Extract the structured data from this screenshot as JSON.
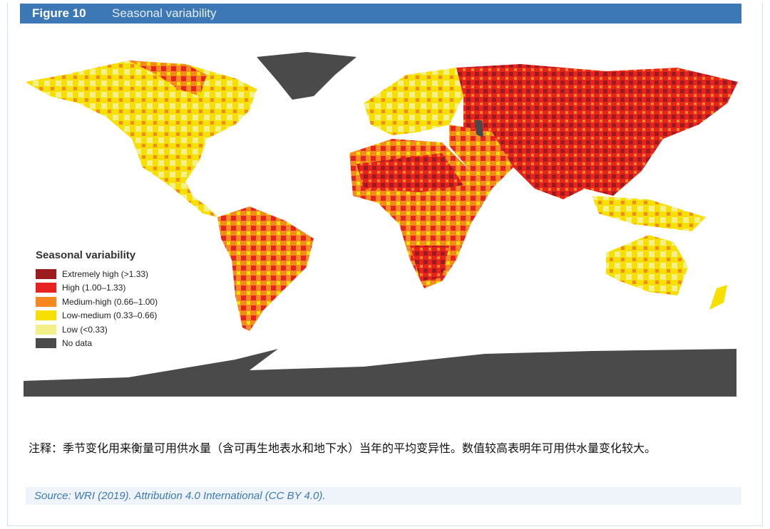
{
  "header": {
    "figure_number": "Figure 10",
    "title": "Seasonal variability"
  },
  "legend": {
    "title": "Seasonal variability",
    "items": [
      {
        "label": "Extremely high (>1.33)",
        "color": "#9b1b1e"
      },
      {
        "label": "High (1.00–1.33)",
        "color": "#e8231f"
      },
      {
        "label": "Medium-high (0.66–1.00)",
        "color": "#f5891f"
      },
      {
        "label": "Low-medium (0.33–0.66)",
        "color": "#f7e000"
      },
      {
        "label": "Low (<0.33)",
        "color": "#f3f08a"
      },
      {
        "label": "No data",
        "color": "#4a4a4a"
      }
    ]
  },
  "note": "注释：季节变化用来衡量可用供水量（含可再生地表水和地下水）当年的平均变异性。数值较高表明年可用供水量变化较大。",
  "source": "Source: WRI (2019). Attribution 4.0 International (CC BY 4.0)."
}
